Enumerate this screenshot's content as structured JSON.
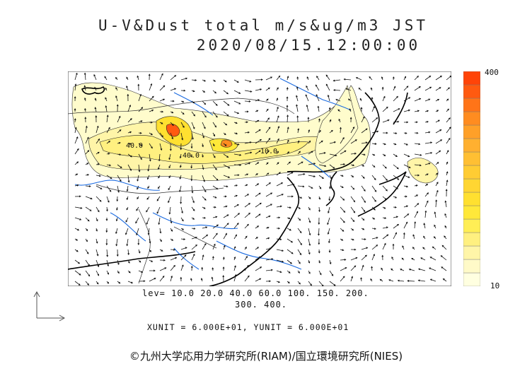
{
  "title": {
    "line1": "U-V&Dust total m/s&ug/m3 JST",
    "line2": "2020/08/15.12:00:00"
  },
  "colorbar": {
    "max_label": "400",
    "min_label": "10",
    "colors": [
      "#ffffe0",
      "#fffac8",
      "#fff5a8",
      "#fff080",
      "#ffee55",
      "#ffe83a",
      "#ffe030",
      "#ffd632",
      "#ffcc33",
      "#ffbf33",
      "#ffb030",
      "#ffa028",
      "#ff8c20",
      "#ff7418",
      "#ff5a10",
      "#ff4408"
    ]
  },
  "contour_levels": {
    "line1": "lev= 10.0 20.0 40.0 60.0 100. 150. 200.",
    "line2": "300. 400."
  },
  "units": "XUNIT = 6.000E+01, YUNIT = 6.000E+01",
  "map_labels": [
    "40.0",
    "40.0",
    "10.0"
  ],
  "copyright": "©九州大学応用力学研究所(RIAM)/国立環境研究所(NIES)",
  "icons": {
    "axes": "wind-vector-axes-icon"
  }
}
